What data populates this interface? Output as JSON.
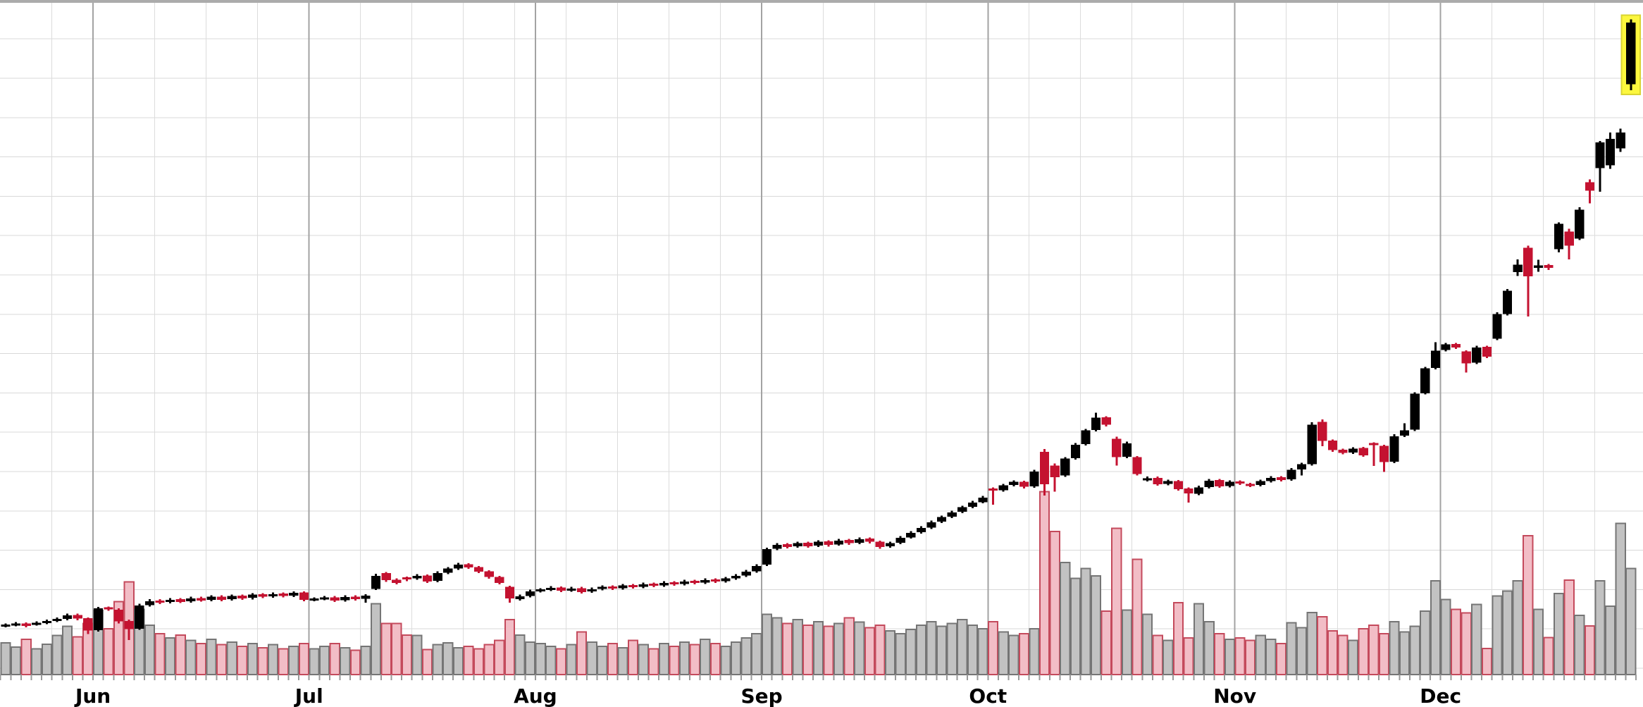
{
  "chart_data": {
    "type": "candlestick",
    "subtype": "daily OHLC candlestick chart with volume bars",
    "title": "",
    "xlabel": "",
    "ylabel": "",
    "x_axis": {
      "tick_unit": "trading-day",
      "month_labels": [
        {
          "label": "Jun",
          "first_day": 9
        },
        {
          "label": "Jul",
          "first_day": 30
        },
        {
          "label": "Aug",
          "first_day": 52
        },
        {
          "label": "Sep",
          "first_day": 74
        },
        {
          "label": "Oct",
          "first_day": 96
        },
        {
          "label": "Nov",
          "first_day": 120
        },
        {
          "label": "Dec",
          "first_day": 140
        }
      ]
    },
    "price_axis": {
      "labels_visible": false,
      "estimated_range": [
        162,
        455
      ]
    },
    "volume_axis": {
      "labels_visible": false,
      "estimated_max_millions": 110
    },
    "highlighted_day": 158,
    "legend": "none",
    "grid": {
      "horizontal": true,
      "vertical_weekly": true,
      "vertical_month": true
    },
    "days": [
      [
        183.2,
        184.4,
        182.6,
        183.6,
        5.2
      ],
      [
        183.7,
        184.9,
        183.1,
        184.2,
        4.5
      ],
      [
        184.3,
        184.8,
        182.6,
        183.3,
        5.8
      ],
      [
        184.0,
        185.2,
        183.4,
        184.5,
        4.2
      ],
      [
        184.6,
        186.1,
        184.0,
        185.4,
        5.0
      ],
      [
        185.5,
        187.0,
        184.9,
        186.3,
        6.4
      ],
      [
        186.4,
        188.6,
        185.8,
        187.9,
        7.9
      ],
      [
        188.0,
        188.6,
        185.8,
        186.5,
        6.2
      ],
      [
        186.6,
        187.0,
        179.8,
        181.2,
        8.4
      ],
      [
        181.4,
        191.6,
        180.8,
        191.0,
        10.5
      ],
      [
        191.2,
        191.7,
        189.9,
        190.6,
        7.5
      ],
      [
        190.4,
        190.9,
        184.3,
        185.2,
        12.0
      ],
      [
        185.4,
        186.0,
        177.1,
        181.9,
        15.2
      ],
      [
        182.1,
        192.9,
        181.5,
        192.2,
        10.7
      ],
      [
        192.4,
        195.0,
        191.8,
        194.1,
        8.1
      ],
      [
        194.3,
        194.9,
        192.8,
        193.5,
        6.7
      ],
      [
        193.7,
        195.5,
        193.1,
        194.7,
        6.0
      ],
      [
        194.9,
        195.4,
        193.2,
        193.8,
        6.5
      ],
      [
        194.0,
        196.0,
        193.4,
        195.3,
        5.6
      ],
      [
        195.5,
        196.0,
        193.8,
        194.4,
        5.1
      ],
      [
        194.6,
        196.7,
        194.0,
        196.0,
        5.8
      ],
      [
        196.1,
        196.6,
        194.1,
        194.7,
        4.9
      ],
      [
        194.9,
        197.0,
        194.3,
        196.3,
        5.3
      ],
      [
        196.5,
        197.0,
        194.7,
        195.3,
        4.6
      ],
      [
        195.5,
        197.6,
        194.9,
        196.9,
        5.1
      ],
      [
        197.1,
        197.6,
        195.4,
        196.0,
        4.4
      ],
      [
        196.2,
        197.9,
        195.6,
        197.2,
        4.9
      ],
      [
        197.4,
        197.9,
        195.7,
        196.3,
        4.2
      ],
      [
        196.5,
        198.4,
        195.9,
        197.8,
        4.6
      ],
      [
        197.9,
        198.4,
        194.0,
        194.7,
        5.1
      ],
      [
        194.6,
        195.8,
        194.0,
        195.0,
        4.2
      ],
      [
        195.1,
        196.3,
        194.5,
        195.6,
        4.6
      ],
      [
        195.8,
        196.3,
        193.8,
        194.4,
        5.1
      ],
      [
        194.5,
        196.6,
        193.9,
        195.9,
        4.4
      ],
      [
        196.1,
        196.6,
        194.4,
        195.0,
        4.0
      ],
      [
        195.1,
        197.2,
        193.4,
        196.5,
        4.6
      ],
      [
        199.5,
        206.0,
        199.0,
        205.2,
        11.6
      ],
      [
        206.4,
        206.9,
        202.5,
        203.3,
        8.4
      ],
      [
        203.5,
        204.0,
        201.4,
        202.1,
        8.4
      ],
      [
        204.1,
        204.8,
        202.9,
        203.9,
        6.5
      ],
      [
        204.0,
        205.9,
        203.4,
        205.2,
        6.4
      ],
      [
        205.3,
        205.8,
        202.0,
        202.7,
        4.1
      ],
      [
        203.0,
        207.1,
        202.4,
        206.4,
        4.9
      ],
      [
        206.5,
        209.0,
        205.9,
        208.3,
        5.2
      ],
      [
        208.4,
        210.8,
        207.8,
        210.1,
        4.4
      ],
      [
        210.2,
        210.7,
        208.2,
        208.9,
        4.6
      ],
      [
        209.0,
        209.5,
        206.3,
        207.0,
        4.2
      ],
      [
        207.1,
        207.6,
        203.9,
        204.6,
        4.9
      ],
      [
        204.7,
        205.2,
        201.4,
        202.1,
        5.6
      ],
      [
        200.3,
        200.8,
        193.4,
        195.3,
        9.0
      ],
      [
        195.0,
        197.0,
        194.4,
        196.2,
        6.5
      ],
      [
        196.4,
        199.1,
        195.8,
        198.4,
        5.3
      ],
      [
        198.5,
        199.7,
        197.9,
        199.0,
        5.1
      ],
      [
        199.1,
        200.6,
        198.5,
        199.9,
        4.6
      ],
      [
        200.0,
        200.5,
        198.0,
        198.7,
        4.2
      ],
      [
        198.8,
        200.3,
        198.2,
        199.6,
        4.9
      ],
      [
        199.8,
        200.3,
        197.4,
        198.1,
        7.0
      ],
      [
        198.3,
        200.0,
        197.7,
        199.3,
        5.3
      ],
      [
        199.4,
        201.0,
        198.8,
        200.3,
        4.6
      ],
      [
        200.5,
        201.0,
        198.9,
        199.6,
        5.1
      ],
      [
        199.7,
        201.6,
        199.1,
        200.9,
        4.4
      ],
      [
        201.1,
        201.6,
        199.6,
        200.3,
        5.6
      ],
      [
        200.4,
        202.2,
        199.8,
        201.5,
        4.9
      ],
      [
        201.7,
        202.2,
        200.2,
        200.9,
        4.2
      ],
      [
        201.0,
        202.8,
        200.4,
        202.1,
        5.1
      ],
      [
        202.3,
        202.8,
        200.8,
        201.5,
        4.6
      ],
      [
        201.6,
        203.4,
        201.0,
        202.7,
        5.3
      ],
      [
        202.9,
        203.4,
        201.4,
        202.1,
        4.9
      ],
      [
        202.2,
        204.0,
        201.6,
        203.3,
        5.8
      ],
      [
        203.5,
        204.0,
        202.0,
        202.7,
        5.1
      ],
      [
        202.8,
        204.7,
        202.2,
        204.0,
        4.6
      ],
      [
        204.1,
        205.9,
        203.5,
        205.2,
        5.3
      ],
      [
        205.3,
        207.7,
        204.7,
        207.0,
        6.0
      ],
      [
        207.1,
        210.2,
        206.5,
        209.5,
        6.7
      ],
      [
        210.0,
        217.5,
        209.4,
        216.9,
        9.9
      ],
      [
        217.0,
        219.4,
        216.4,
        218.7,
        9.3
      ],
      [
        219.0,
        219.5,
        217.1,
        217.8,
        8.4
      ],
      [
        218.0,
        220.1,
        217.4,
        219.4,
        9.0
      ],
      [
        219.6,
        220.1,
        217.4,
        218.1,
        8.1
      ],
      [
        218.3,
        220.7,
        217.7,
        220.0,
        8.7
      ],
      [
        220.2,
        220.7,
        218.0,
        218.7,
        7.9
      ],
      [
        218.9,
        221.3,
        218.3,
        220.6,
        8.4
      ],
      [
        220.8,
        221.3,
        218.7,
        219.4,
        9.3
      ],
      [
        219.6,
        221.9,
        219.0,
        221.2,
        8.6
      ],
      [
        221.4,
        221.9,
        219.3,
        220.0,
        7.7
      ],
      [
        220.1,
        220.6,
        217.0,
        217.8,
        8.1
      ],
      [
        218.0,
        220.1,
        217.4,
        219.4,
        7.2
      ],
      [
        219.6,
        222.5,
        219.0,
        221.8,
        6.7
      ],
      [
        222.0,
        224.7,
        221.4,
        224.0,
        7.4
      ],
      [
        224.2,
        226.8,
        223.6,
        226.1,
        8.1
      ],
      [
        226.3,
        229.3,
        225.7,
        228.6,
        8.7
      ],
      [
        228.8,
        231.5,
        228.2,
        230.8,
        7.9
      ],
      [
        231.0,
        233.6,
        230.4,
        232.9,
        8.4
      ],
      [
        233.1,
        235.8,
        232.5,
        235.1,
        9.0
      ],
      [
        235.3,
        237.9,
        234.7,
        237.2,
        8.1
      ],
      [
        237.4,
        240.1,
        236.8,
        239.4,
        7.5
      ],
      [
        243.2,
        243.8,
        236.3,
        242.5,
        8.7
      ],
      [
        242.6,
        245.4,
        242.0,
        244.7,
        7.0
      ],
      [
        244.8,
        246.9,
        244.2,
        246.2,
        6.4
      ],
      [
        246.3,
        246.8,
        243.4,
        244.1,
        6.7
      ],
      [
        244.3,
        251.5,
        243.7,
        250.8,
        7.5
      ],
      [
        259.4,
        260.6,
        240.3,
        245.2,
        30.0
      ],
      [
        253.3,
        254.3,
        241.9,
        248.3,
        23.5
      ],
      [
        249.0,
        257.1,
        248.4,
        256.4,
        18.4
      ],
      [
        256.6,
        263.2,
        256.0,
        262.5,
        15.8
      ],
      [
        262.7,
        269.4,
        262.1,
        268.7,
        17.4
      ],
      [
        268.9,
        276.4,
        268.3,
        274.3,
        16.2
      ],
      [
        274.4,
        274.9,
        270.5,
        271.2,
        10.4
      ],
      [
        265.0,
        266.0,
        253.3,
        257.0,
        24.0
      ],
      [
        257.2,
        263.8,
        256.6,
        263.1,
        10.6
      ],
      [
        257.0,
        257.5,
        249.0,
        249.6,
        18.9
      ],
      [
        247.0,
        248.5,
        246.4,
        247.8,
        9.9
      ],
      [
        248.0,
        248.5,
        244.5,
        245.2,
        6.4
      ],
      [
        245.4,
        247.2,
        244.8,
        246.5,
        5.6
      ],
      [
        246.6,
        247.1,
        242.4,
        243.1,
        11.8
      ],
      [
        243.3,
        243.8,
        237.2,
        241.2,
        6.0
      ],
      [
        241.0,
        244.5,
        240.4,
        243.8,
        11.6
      ],
      [
        243.9,
        247.5,
        243.3,
        246.8,
        8.7
      ],
      [
        247.0,
        247.5,
        243.6,
        244.3,
        6.7
      ],
      [
        244.4,
        246.9,
        243.8,
        246.2,
        5.8
      ],
      [
        246.4,
        246.9,
        244.9,
        245.6,
        6.0
      ],
      [
        245.0,
        245.8,
        243.9,
        244.7,
        5.6
      ],
      [
        244.9,
        247.2,
        244.3,
        246.5,
        6.4
      ],
      [
        246.6,
        248.7,
        246.0,
        248.0,
        5.8
      ],
      [
        248.2,
        248.7,
        246.4,
        247.1,
        5.1
      ],
      [
        247.3,
        252.2,
        246.7,
        251.5,
        8.5
      ],
      [
        251.7,
        254.6,
        249.0,
        253.9,
        7.7
      ],
      [
        254.0,
        272.3,
        253.4,
        271.2,
        10.2
      ],
      [
        272.4,
        273.5,
        261.9,
        264.1,
        9.5
      ],
      [
        264.3,
        264.8,
        259.4,
        260.1,
        7.2
      ],
      [
        260.3,
        260.8,
        258.2,
        258.9,
        6.4
      ],
      [
        259.1,
        261.4,
        258.5,
        260.7,
        5.6
      ],
      [
        261.0,
        261.5,
        257.2,
        257.9,
        7.5
      ],
      [
        263.0,
        263.5,
        253.2,
        262.5,
        8.1
      ],
      [
        262.0,
        262.5,
        250.6,
        254.9,
        6.7
      ],
      [
        255.0,
        267.0,
        254.4,
        266.2,
        8.7
      ],
      [
        266.4,
        271.8,
        265.8,
        268.7,
        7.0
      ],
      [
        269.0,
        285.4,
        268.4,
        284.7,
        7.9
      ],
      [
        285.0,
        296.5,
        284.4,
        295.8,
        10.4
      ],
      [
        296.0,
        307.3,
        295.4,
        303.5,
        15.4
      ],
      [
        303.8,
        307.0,
        303.2,
        306.3,
        12.3
      ],
      [
        306.5,
        307.0,
        304.3,
        305.0,
        10.7
      ],
      [
        303.2,
        303.7,
        294.0,
        298.0,
        10.1
      ],
      [
        298.3,
        305.7,
        297.7,
        305.0,
        11.5
      ],
      [
        305.2,
        305.7,
        300.3,
        301.0,
        4.3
      ],
      [
        308.8,
        320.3,
        308.2,
        319.6,
        12.9
      ],
      [
        319.6,
        330.5,
        319.0,
        329.8,
        13.7
      ],
      [
        338.0,
        343.4,
        336.2,
        341.2,
        15.4
      ],
      [
        348.5,
        349.4,
        318.5,
        336.1,
        22.8
      ],
      [
        339.7,
        343.3,
        338.0,
        340.9,
        10.7
      ],
      [
        341.0,
        341.5,
        338.8,
        339.7,
        6.1
      ],
      [
        347.9,
        359.7,
        346.6,
        359.0,
        13.3
      ],
      [
        355.6,
        356.8,
        343.4,
        349.5,
        15.5
      ],
      [
        352.6,
        366.2,
        352.0,
        365.2,
        9.7
      ],
      [
        377.2,
        378.5,
        368.0,
        373.5,
        8.0
      ],
      [
        383.4,
        395.2,
        373.0,
        394.6,
        15.4
      ],
      [
        384.6,
        399.0,
        383.0,
        396.2,
        11.2
      ],
      [
        392.0,
        400.6,
        390.5,
        398.9,
        24.8
      ],
      [
        420.0,
        448.3,
        417.4,
        447.0,
        17.4
      ]
    ]
  },
  "colors": {
    "background": "#FFFFFF",
    "up_candle": "#000000",
    "down_candle": "#C41230",
    "up_volume_fill": "#C2C2C2",
    "up_volume_stroke": "#757575",
    "down_volume_fill": "#F2BDC6",
    "down_volume_stroke": "#C44A5C",
    "grid_horizontal": "#D8D8D8",
    "grid_weekly": "#DCDCDC",
    "grid_month": "#A3A3A3",
    "top_border": "#ABABAB",
    "axis_tick": "#9A9A9A",
    "month_label": "#000000",
    "selection_highlight_fill": "#FCF73E",
    "selection_highlight_stroke": "#D9D432"
  }
}
